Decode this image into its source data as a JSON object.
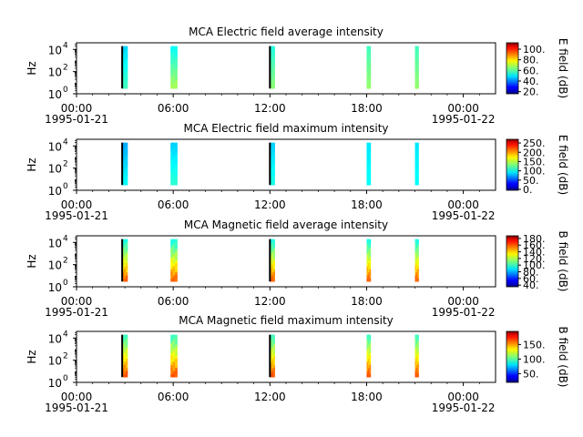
{
  "chart_data": [
    {
      "type": "heatmap",
      "title": "MCA  Electric field average intensity",
      "ylabel": "Hz",
      "y_scale": "log",
      "y_tick_labels": [
        "10",
        "10",
        "10"
      ],
      "y_tick_exponents": [
        "0",
        "2",
        "4"
      ],
      "xlim": [
        "1995-01-21 00:00",
        "1995-01-22 02:00"
      ],
      "x_tick_labels": [
        "00:00",
        "06:00",
        "12:00",
        "18:00",
        "00:00"
      ],
      "x_date_labels": [
        "1995-01-21",
        "1995-01-22"
      ],
      "colorbar_label": "E field (dB)",
      "colorbar_ticks": [
        "20.",
        "40.",
        "60.",
        "80.",
        "100."
      ],
      "colorbar_range": [
        16,
        112
      ],
      "bursts": [
        {
          "time": "02:50",
          "duration_min": 20,
          "freq_range_hz": [
            3,
            20000
          ],
          "intensity_db": [
            48,
            58
          ],
          "black_edge": true
        },
        {
          "time": "05:50",
          "duration_min": 25,
          "freq_range_hz": [
            3,
            20000
          ],
          "intensity_db": [
            52,
            68
          ],
          "black_edge": false
        },
        {
          "time": "12:00",
          "duration_min": 18,
          "freq_range_hz": [
            3,
            20000
          ],
          "intensity_db": [
            55,
            65
          ],
          "black_edge": true
        },
        {
          "time": "18:00",
          "duration_min": 15,
          "freq_range_hz": [
            3,
            20000
          ],
          "intensity_db": [
            58,
            66
          ],
          "black_edge": false
        },
        {
          "time": "21:00",
          "duration_min": 12,
          "freq_range_hz": [
            3,
            20000
          ],
          "intensity_db": [
            58,
            66
          ],
          "black_edge": false
        }
      ]
    },
    {
      "type": "heatmap",
      "title": "MCA  Electric field maximum intensity",
      "ylabel": "Hz",
      "y_scale": "log",
      "y_tick_labels": [
        "10",
        "10",
        "10"
      ],
      "y_tick_exponents": [
        "0",
        "2",
        "4"
      ],
      "xlim": [
        "1995-01-21 00:00",
        "1995-01-22 02:00"
      ],
      "x_tick_labels": [
        "00:00",
        "06:00",
        "12:00",
        "18:00",
        "00:00"
      ],
      "x_date_labels": [
        "1995-01-21",
        "1995-01-22"
      ],
      "colorbar_label": "E field (dB)",
      "colorbar_ticks": [
        "0.",
        "50.",
        "100.",
        "150.",
        "200.",
        "250."
      ],
      "colorbar_range": [
        -5,
        270
      ],
      "bursts": [
        {
          "time": "02:50",
          "duration_min": 20,
          "freq_range_hz": [
            3,
            20000
          ],
          "intensity_db": [
            75,
            100
          ],
          "black_edge": true
        },
        {
          "time": "05:50",
          "duration_min": 25,
          "freq_range_hz": [
            3,
            20000
          ],
          "intensity_db": [
            85,
            110
          ],
          "black_edge": false
        },
        {
          "time": "12:00",
          "duration_min": 18,
          "freq_range_hz": [
            3,
            20000
          ],
          "intensity_db": [
            85,
            105
          ],
          "black_edge": true
        },
        {
          "time": "18:00",
          "duration_min": 15,
          "freq_range_hz": [
            3,
            20000
          ],
          "intensity_db": [
            92,
            100
          ],
          "black_edge": false
        },
        {
          "time": "21:00",
          "duration_min": 12,
          "freq_range_hz": [
            3,
            20000
          ],
          "intensity_db": [
            92,
            100
          ],
          "black_edge": false
        }
      ]
    },
    {
      "type": "heatmap",
      "title": "MCA  Magnetic field average intensity",
      "ylabel": "Hz",
      "y_scale": "log",
      "y_tick_labels": [
        "10",
        "10",
        "10"
      ],
      "y_tick_exponents": [
        "0",
        "2",
        "4"
      ],
      "xlim": [
        "1995-01-21 00:00",
        "1995-01-22 02:00"
      ],
      "x_tick_labels": [
        "00:00",
        "06:00",
        "12:00",
        "18:00",
        "00:00"
      ],
      "x_date_labels": [
        "1995-01-21",
        "1995-01-22"
      ],
      "colorbar_label": "B field (dB)",
      "colorbar_ticks": [
        "40.",
        "60.",
        "80.",
        "100.",
        "120.",
        "140.",
        "160.",
        "180."
      ],
      "colorbar_range": [
        35,
        188
      ],
      "bursts": [
        {
          "time": "02:50",
          "duration_min": 20,
          "freq_range_hz": [
            3,
            20000
          ],
          "intensity_db": [
            95,
            155
          ],
          "black_edge": true
        },
        {
          "time": "05:50",
          "duration_min": 25,
          "freq_range_hz": [
            3,
            20000
          ],
          "intensity_db": [
            95,
            155
          ],
          "black_edge": false
        },
        {
          "time": "12:00",
          "duration_min": 18,
          "freq_range_hz": [
            3,
            20000
          ],
          "intensity_db": [
            95,
            155
          ],
          "black_edge": true
        },
        {
          "time": "18:00",
          "duration_min": 15,
          "freq_range_hz": [
            3,
            20000
          ],
          "intensity_db": [
            95,
            155
          ],
          "black_edge": false
        },
        {
          "time": "21:00",
          "duration_min": 12,
          "freq_range_hz": [
            3,
            20000
          ],
          "intensity_db": [
            95,
            155
          ],
          "black_edge": false
        }
      ]
    },
    {
      "type": "heatmap",
      "title": "MCA  Magnetic field maximum intensity",
      "ylabel": "Hz",
      "y_scale": "log",
      "y_tick_labels": [
        "10",
        "10",
        "10"
      ],
      "y_tick_exponents": [
        "0",
        "2",
        "4"
      ],
      "xlim": [
        "1995-01-21 00:00",
        "1995-01-22 02:00"
      ],
      "x_tick_labels": [
        "00:00",
        "06:00",
        "12:00",
        "18:00",
        "00:00"
      ],
      "x_date_labels": [
        "1995-01-21",
        "1995-01-22"
      ],
      "colorbar_label": "B field (dB)",
      "colorbar_ticks": [
        "50.",
        "100.",
        "150."
      ],
      "colorbar_range": [
        20,
        195
      ],
      "bursts": [
        {
          "time": "02:50",
          "duration_min": 20,
          "freq_range_hz": [
            3,
            20000
          ],
          "intensity_db": [
            95,
            160
          ],
          "black_edge": true
        },
        {
          "time": "05:50",
          "duration_min": 25,
          "freq_range_hz": [
            3,
            20000
          ],
          "intensity_db": [
            95,
            160
          ],
          "black_edge": false
        },
        {
          "time": "12:00",
          "duration_min": 18,
          "freq_range_hz": [
            3,
            20000
          ],
          "intensity_db": [
            95,
            160
          ],
          "black_edge": true
        },
        {
          "time": "18:00",
          "duration_min": 15,
          "freq_range_hz": [
            3,
            20000
          ],
          "intensity_db": [
            95,
            160
          ],
          "black_edge": false
        },
        {
          "time": "21:00",
          "duration_min": 12,
          "freq_range_hz": [
            3,
            20000
          ],
          "intensity_db": [
            95,
            160
          ],
          "black_edge": false
        }
      ]
    }
  ]
}
